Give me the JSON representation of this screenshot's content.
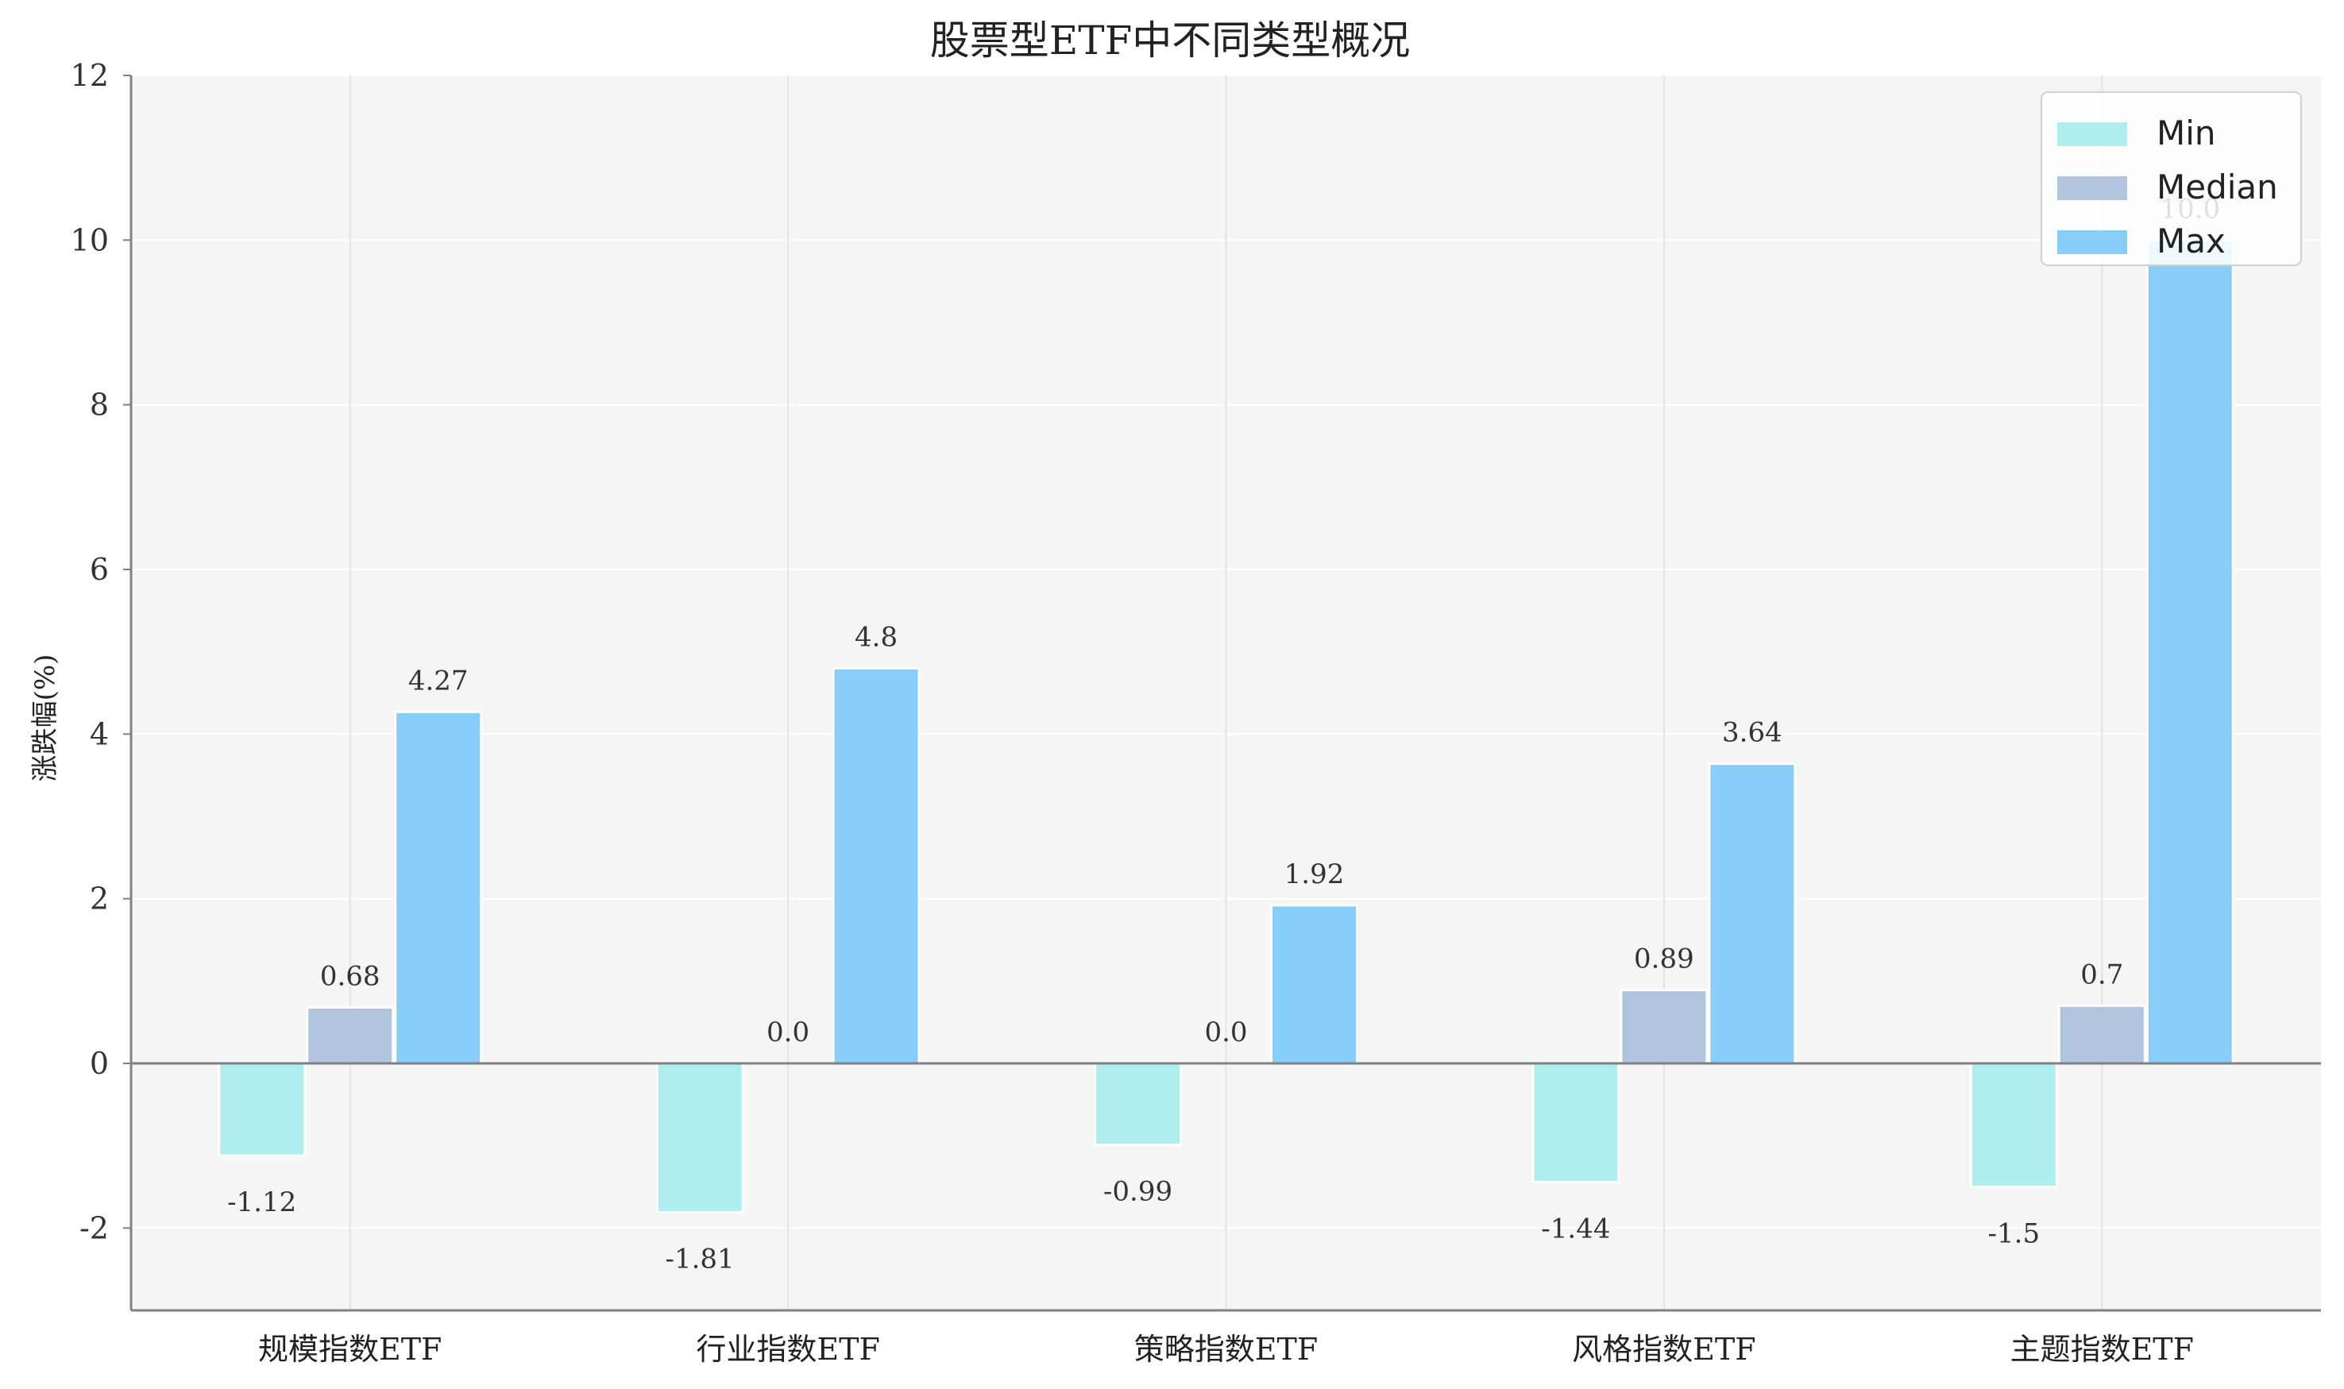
{
  "chart_data": {
    "type": "bar",
    "title": "股票型ETF中不同类型概况",
    "ylabel": "涨跌幅(%)",
    "xlabel": "",
    "ylim": [
      -3,
      12
    ],
    "yticks": [
      -2,
      0,
      2,
      4,
      6,
      8,
      10,
      12
    ],
    "grid": true,
    "legend_position": "top-right",
    "categories": [
      "规模指数ETF",
      "行业指数ETF",
      "策略指数ETF",
      "风格指数ETF",
      "主题指数ETF"
    ],
    "series": [
      {
        "name": "Min",
        "color": "#afeeee",
        "values": [
          -1.12,
          -1.81,
          -0.99,
          -1.44,
          -1.5
        ],
        "labels": [
          "-1.12",
          "-1.81",
          "-0.99",
          "-1.44",
          "-1.5"
        ]
      },
      {
        "name": "Median",
        "color": "#b0c4de",
        "values": [
          0.68,
          0.0,
          0.0,
          0.89,
          0.7
        ],
        "labels": [
          "0.68",
          "0.0",
          "0.0",
          "0.89",
          "0.7"
        ]
      },
      {
        "name": "Max",
        "color": "#87cefa",
        "values": [
          4.27,
          4.8,
          1.92,
          3.64,
          10.0
        ],
        "labels": [
          "4.27",
          "4.8",
          "1.92",
          "3.64",
          "10.0"
        ]
      }
    ]
  }
}
